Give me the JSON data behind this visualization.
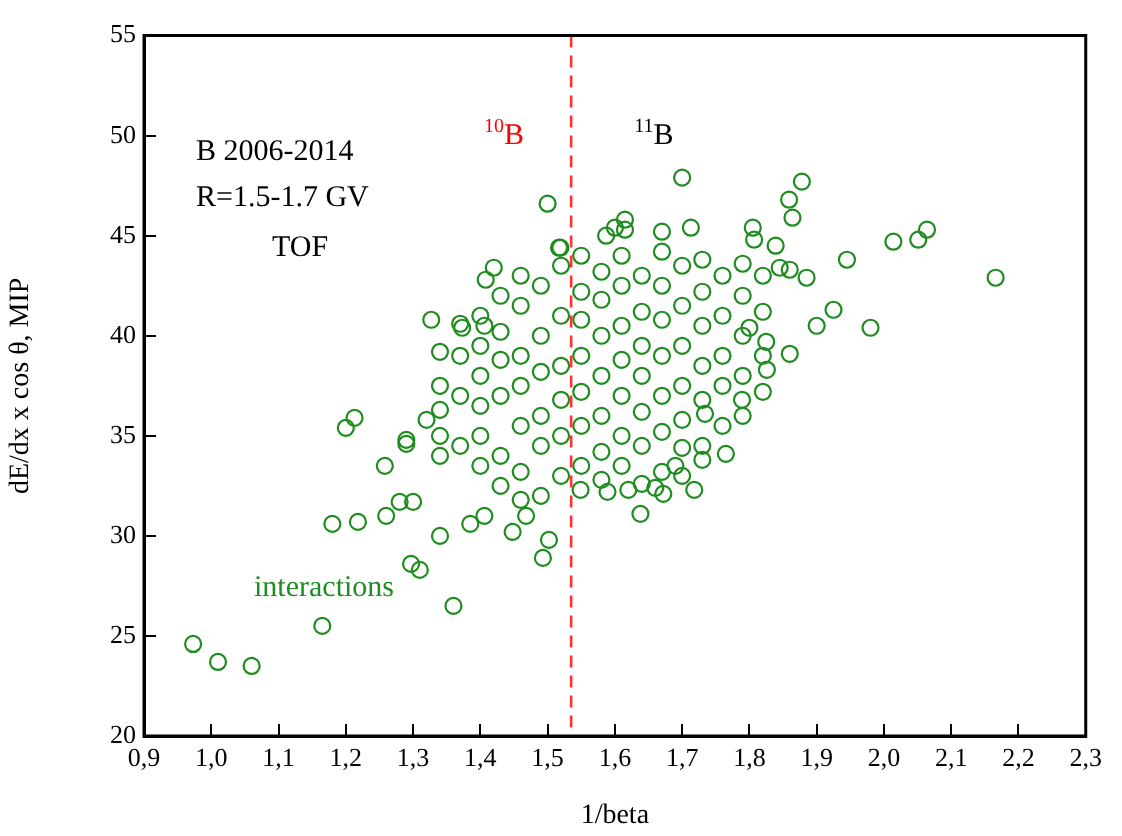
{
  "chart_data": {
    "type": "scatter",
    "xlabel": "1/beta",
    "ylabel": "dE/dx x cos θ, MIP",
    "annotations": [
      "B 2006-2014",
      "R=1.5-1.7 GV",
      "TOF",
      "$^{10}$B",
      "$^{11}$B",
      "interactions"
    ],
    "xlim": [
      0.9,
      2.3
    ],
    "xticks": [
      {
        "value": 0.9,
        "label": "0,9"
      },
      {
        "value": 1.0,
        "label": "1,0"
      },
      {
        "value": 1.1,
        "label": "1,1"
      },
      {
        "value": 1.2,
        "label": "1,2"
      },
      {
        "value": 1.3,
        "label": "1,3"
      },
      {
        "value": 1.4,
        "label": "1,4"
      },
      {
        "value": 1.5,
        "label": "1,5"
      },
      {
        "value": 1.6,
        "label": "1,6"
      },
      {
        "value": 1.7,
        "label": "1,7"
      },
      {
        "value": 1.8,
        "label": "1,8"
      },
      {
        "value": 1.9,
        "label": "1,9"
      },
      {
        "value": 2.0,
        "label": "2,0"
      },
      {
        "value": 2.1,
        "label": "2,1"
      },
      {
        "value": 2.2,
        "label": "2,2"
      },
      {
        "value": 2.3,
        "label": "2,3"
      }
    ],
    "ylim": [
      20,
      55
    ],
    "yticks": [
      20,
      25,
      30,
      35,
      40,
      45,
      50,
      55
    ],
    "grid": false,
    "legend": false,
    "marker": "circle",
    "ref_lines": [
      {
        "axis": "x",
        "value": 1.535,
        "color": "#ff3333",
        "line_style": "dashed"
      }
    ],
    "series": [
      {
        "color": "#1e8c1e",
        "x": [
          0.973,
          1.01,
          1.06,
          1.165,
          1.18,
          1.218,
          1.2,
          1.213,
          1.258,
          1.26,
          1.28,
          1.3,
          1.297,
          1.31,
          1.29,
          1.29,
          1.34,
          1.36,
          1.327,
          1.32,
          1.34,
          1.34,
          1.385,
          1.406,
          1.373,
          1.406,
          1.408,
          1.42,
          1.493,
          1.502,
          1.5,
          1.517,
          1.448,
          1.468,
          1.7,
          1.878,
          1.859,
          1.864,
          2.014,
          2.051,
          2.064,
          2.166,
          1.945,
          1.925,
          1.9,
          1.98,
          1.86,
          1.805,
          1.807,
          1.839,
          1.713,
          1.67,
          1.615,
          1.615,
          1.587,
          1.6,
          1.519,
          1.638,
          1.718,
          1.765,
          1.73,
          1.7,
          1.69,
          1.672,
          1.66,
          1.589,
          1.549,
          1.62,
          1.789,
          1.734,
          1.826,
          1.825,
          1.885,
          1.86,
          1.845,
          1.8,
          1.4,
          1.4,
          1.4,
          1.4,
          1.4,
          1.4,
          1.43,
          1.43,
          1.43,
          1.43,
          1.43,
          1.43,
          1.46,
          1.46,
          1.46,
          1.46,
          1.46,
          1.46,
          1.46,
          1.49,
          1.49,
          1.49,
          1.49,
          1.49,
          1.49,
          1.52,
          1.52,
          1.52,
          1.52,
          1.52,
          1.52,
          1.55,
          1.55,
          1.55,
          1.55,
          1.55,
          1.55,
          1.55,
          1.58,
          1.58,
          1.58,
          1.58,
          1.58,
          1.58,
          1.58,
          1.61,
          1.61,
          1.61,
          1.61,
          1.61,
          1.61,
          1.61,
          1.64,
          1.64,
          1.64,
          1.64,
          1.64,
          1.64,
          1.64,
          1.67,
          1.67,
          1.67,
          1.67,
          1.67,
          1.67,
          1.67,
          1.7,
          1.7,
          1.7,
          1.7,
          1.7,
          1.7,
          1.73,
          1.73,
          1.73,
          1.73,
          1.73,
          1.73,
          1.76,
          1.76,
          1.76,
          1.76,
          1.76,
          1.79,
          1.79,
          1.79,
          1.79,
          1.79,
          1.82,
          1.82,
          1.82,
          1.82,
          1.37,
          1.37,
          1.37,
          1.37,
          1.34,
          1.34,
          1.34
        ],
        "values": [
          24.6,
          23.7,
          23.5,
          25.5,
          30.6,
          30.7,
          35.4,
          35.9,
          33.5,
          31.0,
          31.7,
          31.7,
          28.6,
          28.3,
          34.8,
          34.6,
          30.0,
          26.5,
          40.8,
          35.8,
          36.3,
          34.0,
          30.6,
          31.0,
          40.4,
          40.5,
          42.8,
          43.4,
          28.9,
          29.8,
          46.6,
          44.4,
          30.2,
          31.0,
          47.9,
          47.7,
          46.8,
          45.9,
          44.7,
          44.8,
          45.3,
          42.9,
          43.8,
          41.3,
          40.5,
          40.4,
          39.1,
          45.4,
          44.8,
          44.5,
          45.4,
          45.2,
          45.8,
          45.3,
          45.0,
          45.4,
          44.4,
          31.1,
          32.3,
          34.1,
          33.8,
          34.4,
          33.5,
          32.1,
          32.4,
          32.2,
          32.3,
          32.3,
          36.8,
          36.1,
          38.3,
          39.7,
          42.9,
          43.3,
          43.4,
          40.4,
          33.5,
          35,
          36.5,
          38,
          39.5,
          41,
          32.5,
          34,
          37,
          38.8,
          40.2,
          42,
          31.8,
          33.2,
          35.5,
          37.5,
          39,
          41.5,
          43,
          32,
          34.5,
          36,
          38.2,
          40,
          42.5,
          33,
          35,
          36.8,
          38.5,
          41,
          43.5,
          33.5,
          35.5,
          37.2,
          39,
          40.8,
          42.2,
          44,
          32.8,
          34.2,
          36,
          38,
          40,
          41.8,
          43.2,
          33.5,
          35,
          37,
          38.8,
          40.5,
          42.5,
          44,
          32.6,
          34.5,
          36.2,
          38,
          39.5,
          41.2,
          43,
          33.2,
          35.2,
          37,
          39,
          40.8,
          42.5,
          44.2,
          33,
          35.8,
          37.5,
          39.5,
          41.5,
          43.5,
          34.5,
          36.8,
          38.5,
          40.5,
          42.2,
          43.8,
          35.5,
          37.5,
          39,
          41,
          43,
          36,
          38,
          40,
          42,
          43.6,
          37.2,
          39,
          41.2,
          43,
          34.5,
          37,
          39,
          40.6,
          35,
          37.5,
          39.2
        ]
      }
    ]
  }
}
